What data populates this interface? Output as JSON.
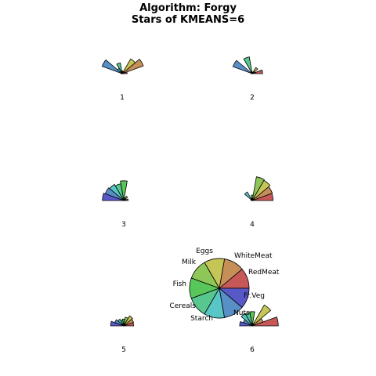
{
  "title": "Algorithm: Forgy",
  "subtitle": "Stars of KMEANS=6",
  "chart_data": {
    "type": "star-segments",
    "title": "Algorithm: Forgy",
    "subtitle": "Stars of KMEANS=6",
    "variables": [
      "RedMeat",
      "WhiteMeat",
      "Eggs",
      "Milk",
      "Fish",
      "Cereals",
      "Starch",
      "Nuts",
      "Fr.Veg"
    ],
    "colors": [
      "#c65858",
      "#c68f58",
      "#c6c658",
      "#8fc658",
      "#58c658",
      "#58c68f",
      "#58c6c6",
      "#588fc6",
      "#5858c6"
    ],
    "stars": [
      {
        "label": "1",
        "values": [
          0.18,
          0.82,
          0.62,
          0.08,
          0.1,
          0.4,
          0.22,
          0.78,
          0.05
        ]
      },
      {
        "label": "2",
        "values": [
          0.38,
          0.12,
          0.26,
          0.06,
          0.04,
          0.62,
          0.08,
          0.75,
          0.04
        ]
      },
      {
        "label": "3",
        "values": [
          0.16,
          0.08,
          0.18,
          0.1,
          0.72,
          0.62,
          0.68,
          0.72,
          0.78
        ]
      },
      {
        "label": "4",
        "values": [
          0.76,
          0.78,
          0.85,
          0.88,
          0.2,
          0.08,
          0.36,
          0.06,
          0.04
        ]
      },
      {
        "label": "5",
        "values": [
          0.36,
          0.38,
          0.42,
          0.32,
          0.25,
          0.22,
          0.28,
          0.35,
          0.48
        ]
      },
      {
        "label": "6",
        "values": [
          0.95,
          0.42,
          0.88,
          0.1,
          0.52,
          0.5,
          0.52,
          0.35,
          0.46
        ]
      }
    ],
    "key": {
      "labels": [
        "RedMeat",
        "WhiteMeat",
        "Eggs",
        "Milk",
        "Fish",
        "Cereals",
        "Starch",
        "Nuts",
        "Fr.Veg"
      ]
    }
  }
}
